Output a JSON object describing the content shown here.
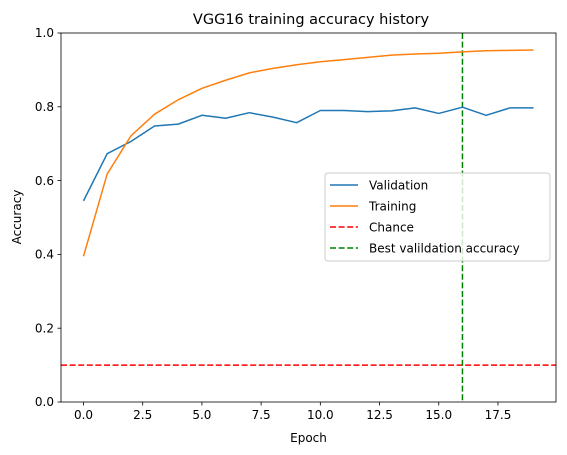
{
  "chart_data": {
    "type": "line",
    "title": "VGG16 training accuracy history",
    "xlabel": "Epoch",
    "ylabel": "Accuracy",
    "xlim": [
      -0.95,
      19.95
    ],
    "ylim": [
      0.0,
      1.0
    ],
    "xticks": [
      0.0,
      2.5,
      5.0,
      7.5,
      10.0,
      12.5,
      15.0,
      17.5
    ],
    "xtick_labels": [
      "0.0",
      "2.5",
      "5.0",
      "7.5",
      "10.0",
      "12.5",
      "15.0",
      "17.5"
    ],
    "yticks": [
      0.0,
      0.2,
      0.4,
      0.6,
      0.8,
      1.0
    ],
    "ytick_labels": [
      "0.0",
      "0.2",
      "0.4",
      "0.6",
      "0.8",
      "1.0"
    ],
    "grid": false,
    "legend_position": "center-right",
    "x": [
      0,
      1,
      2,
      3,
      4,
      5,
      6,
      7,
      8,
      9,
      10,
      11,
      12,
      13,
      14,
      15,
      16,
      17,
      18,
      19
    ],
    "series": [
      {
        "name": "Validation",
        "color": "#1f77b4",
        "style": "solid",
        "values": [
          0.545,
          0.673,
          0.706,
          0.748,
          0.753,
          0.777,
          0.769,
          0.784,
          0.772,
          0.757,
          0.79,
          0.79,
          0.787,
          0.789,
          0.797,
          0.782,
          0.799,
          0.777,
          0.797,
          0.797
        ]
      },
      {
        "name": "Training",
        "color": "#ff7f0e",
        "style": "solid",
        "values": [
          0.395,
          0.618,
          0.721,
          0.78,
          0.819,
          0.85,
          0.872,
          0.892,
          0.904,
          0.914,
          0.922,
          0.928,
          0.934,
          0.94,
          0.943,
          0.945,
          0.949,
          0.952,
          0.953,
          0.954
        ]
      }
    ],
    "reference_lines": [
      {
        "name": "Chance",
        "orientation": "horizontal",
        "value": 0.1,
        "color": "#ff0000",
        "style": "dashed"
      },
      {
        "name": "Best valildation accuracy",
        "orientation": "vertical",
        "value": 16,
        "color": "#008000",
        "style": "dashed"
      }
    ]
  }
}
